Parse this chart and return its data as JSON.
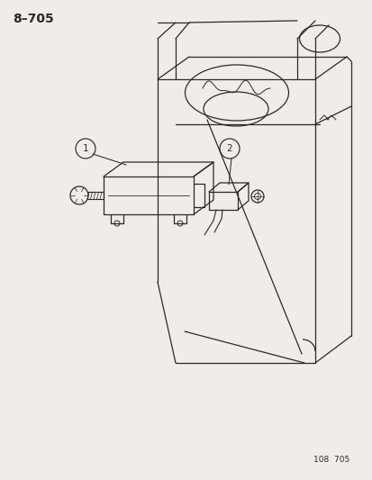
{
  "title": "8–705",
  "subtitle": "108  705",
  "bg_color": "#f0ede8",
  "line_color": "#2a2a2a",
  "title_fontsize": 10,
  "subtitle_fontsize": 6.5
}
